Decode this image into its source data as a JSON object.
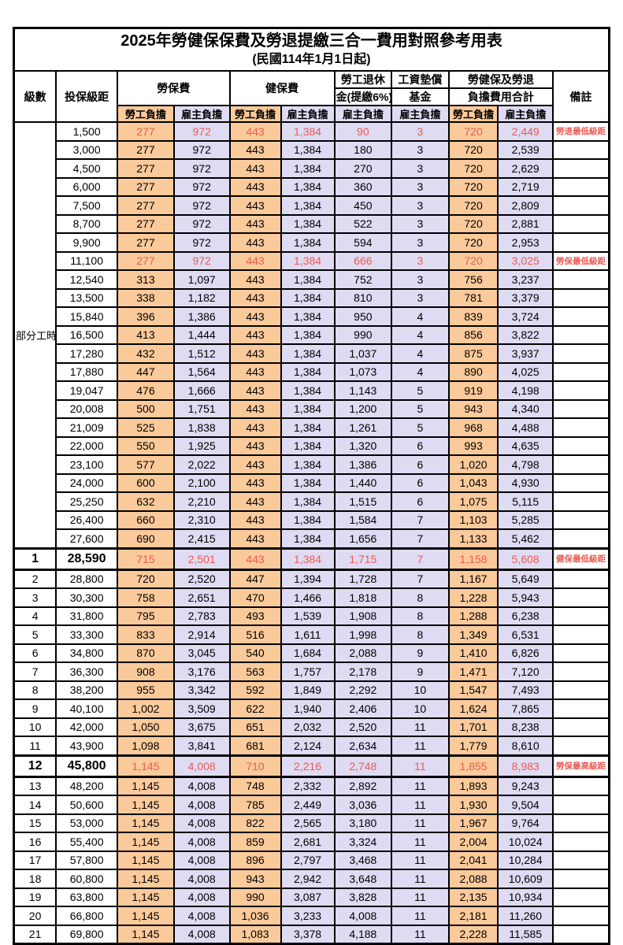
{
  "title": "2025年勞健保保費及勞退提繳三合一費用對照參考用表",
  "subtitle": "(民國114年1月1日起)",
  "colors": {
    "employee_column_bg": "#FBCA9B",
    "employer_column_bg": "#DEDBF3",
    "highlight_text": "#EE5A52",
    "border": "#000000"
  },
  "header": {
    "grade": "級數",
    "salary_bracket": "投保級距",
    "labor_insurance": "勞保費",
    "health_insurance": "健保費",
    "pension_line1": "勞工退休",
    "pension_line2": "金(提繳6%)",
    "wage_fund_line1": "工資墊償",
    "wage_fund_line2": "基金",
    "total_line1": "勞健保及勞退",
    "total_line2": "負擔費用合計",
    "remark": "備註",
    "employee_share": "勞工負擔",
    "employer_share": "雇主負擔"
  },
  "part_time_label": "部分工時",
  "rows": [
    {
      "grade": "",
      "salary": "1,500",
      "v": [
        "277",
        "972",
        "443",
        "1,384",
        "90",
        "3",
        "720",
        "2,449"
      ],
      "remark": "勞退最低級距",
      "red": true
    },
    {
      "grade": "",
      "salary": "3,000",
      "v": [
        "277",
        "972",
        "443",
        "1,384",
        "180",
        "3",
        "720",
        "2,539"
      ],
      "remark": ""
    },
    {
      "grade": "",
      "salary": "4,500",
      "v": [
        "277",
        "972",
        "443",
        "1,384",
        "270",
        "3",
        "720",
        "2,629"
      ],
      "remark": ""
    },
    {
      "grade": "",
      "salary": "6,000",
      "v": [
        "277",
        "972",
        "443",
        "1,384",
        "360",
        "3",
        "720",
        "2,719"
      ],
      "remark": ""
    },
    {
      "grade": "",
      "salary": "7,500",
      "v": [
        "277",
        "972",
        "443",
        "1,384",
        "450",
        "3",
        "720",
        "2,809"
      ],
      "remark": ""
    },
    {
      "grade": "",
      "salary": "8,700",
      "v": [
        "277",
        "972",
        "443",
        "1,384",
        "522",
        "3",
        "720",
        "2,881"
      ],
      "remark": ""
    },
    {
      "grade": "",
      "salary": "9,900",
      "v": [
        "277",
        "972",
        "443",
        "1,384",
        "594",
        "3",
        "720",
        "2,953"
      ],
      "remark": ""
    },
    {
      "grade": "",
      "salary": "11,100",
      "v": [
        "277",
        "972",
        "443",
        "1,384",
        "666",
        "3",
        "720",
        "3,025"
      ],
      "remark": "勞保最低級距",
      "red": true
    },
    {
      "grade": "",
      "salary": "12,540",
      "v": [
        "313",
        "1,097",
        "443",
        "1,384",
        "752",
        "3",
        "756",
        "3,237"
      ],
      "remark": ""
    },
    {
      "grade": "",
      "salary": "13,500",
      "v": [
        "338",
        "1,182",
        "443",
        "1,384",
        "810",
        "3",
        "781",
        "3,379"
      ],
      "remark": ""
    },
    {
      "grade": "",
      "salary": "15,840",
      "v": [
        "396",
        "1,386",
        "443",
        "1,384",
        "950",
        "4",
        "839",
        "3,724"
      ],
      "remark": ""
    },
    {
      "grade": "",
      "salary": "16,500",
      "v": [
        "413",
        "1,444",
        "443",
        "1,384",
        "990",
        "4",
        "856",
        "3,822"
      ],
      "remark": ""
    },
    {
      "grade": "",
      "salary": "17,280",
      "v": [
        "432",
        "1,512",
        "443",
        "1,384",
        "1,037",
        "4",
        "875",
        "3,937"
      ],
      "remark": ""
    },
    {
      "grade": "",
      "salary": "17,880",
      "v": [
        "447",
        "1,564",
        "443",
        "1,384",
        "1,073",
        "4",
        "890",
        "4,025"
      ],
      "remark": ""
    },
    {
      "grade": "",
      "salary": "19,047",
      "v": [
        "476",
        "1,666",
        "443",
        "1,384",
        "1,143",
        "5",
        "919",
        "4,198"
      ],
      "remark": ""
    },
    {
      "grade": "",
      "salary": "20,008",
      "v": [
        "500",
        "1,751",
        "443",
        "1,384",
        "1,200",
        "5",
        "943",
        "4,340"
      ],
      "remark": ""
    },
    {
      "grade": "",
      "salary": "21,009",
      "v": [
        "525",
        "1,838",
        "443",
        "1,384",
        "1,261",
        "5",
        "968",
        "4,488"
      ],
      "remark": ""
    },
    {
      "grade": "",
      "salary": "22,000",
      "v": [
        "550",
        "1,925",
        "443",
        "1,384",
        "1,320",
        "6",
        "993",
        "4,635"
      ],
      "remark": ""
    },
    {
      "grade": "",
      "salary": "23,100",
      "v": [
        "577",
        "2,022",
        "443",
        "1,384",
        "1,386",
        "6",
        "1,020",
        "4,798"
      ],
      "remark": ""
    },
    {
      "grade": "",
      "salary": "24,000",
      "v": [
        "600",
        "2,100",
        "443",
        "1,384",
        "1,440",
        "6",
        "1,043",
        "4,930"
      ],
      "remark": ""
    },
    {
      "grade": "",
      "salary": "25,250",
      "v": [
        "632",
        "2,210",
        "443",
        "1,384",
        "1,515",
        "6",
        "1,075",
        "5,115"
      ],
      "remark": ""
    },
    {
      "grade": "",
      "salary": "26,400",
      "v": [
        "660",
        "2,310",
        "443",
        "1,384",
        "1,584",
        "7",
        "1,103",
        "5,285"
      ],
      "remark": ""
    },
    {
      "grade": "",
      "salary": "27,600",
      "v": [
        "690",
        "2,415",
        "443",
        "1,384",
        "1,656",
        "7",
        "1,133",
        "5,462"
      ],
      "remark": ""
    },
    {
      "grade": "1",
      "salary": "28,590",
      "v": [
        "715",
        "2,501",
        "443",
        "1,384",
        "1,715",
        "7",
        "1,158",
        "5,608"
      ],
      "remark": "健保最低級距",
      "red": true,
      "key": true
    },
    {
      "grade": "2",
      "salary": "28,800",
      "v": [
        "720",
        "2,520",
        "447",
        "1,394",
        "1,728",
        "7",
        "1,167",
        "5,649"
      ],
      "remark": ""
    },
    {
      "grade": "3",
      "salary": "30,300",
      "v": [
        "758",
        "2,651",
        "470",
        "1,466",
        "1,818",
        "8",
        "1,228",
        "5,943"
      ],
      "remark": ""
    },
    {
      "grade": "4",
      "salary": "31,800",
      "v": [
        "795",
        "2,783",
        "493",
        "1,539",
        "1,908",
        "8",
        "1,288",
        "6,238"
      ],
      "remark": ""
    },
    {
      "grade": "5",
      "salary": "33,300",
      "v": [
        "833",
        "2,914",
        "516",
        "1,611",
        "1,998",
        "8",
        "1,349",
        "6,531"
      ],
      "remark": ""
    },
    {
      "grade": "6",
      "salary": "34,800",
      "v": [
        "870",
        "3,045",
        "540",
        "1,684",
        "2,088",
        "9",
        "1,410",
        "6,826"
      ],
      "remark": ""
    },
    {
      "grade": "7",
      "salary": "36,300",
      "v": [
        "908",
        "3,176",
        "563",
        "1,757",
        "2,178",
        "9",
        "1,471",
        "7,120"
      ],
      "remark": ""
    },
    {
      "grade": "8",
      "salary": "38,200",
      "v": [
        "955",
        "3,342",
        "592",
        "1,849",
        "2,292",
        "10",
        "1,547",
        "7,493"
      ],
      "remark": ""
    },
    {
      "grade": "9",
      "salary": "40,100",
      "v": [
        "1,002",
        "3,509",
        "622",
        "1,940",
        "2,406",
        "10",
        "1,624",
        "7,865"
      ],
      "remark": ""
    },
    {
      "grade": "10",
      "salary": "42,000",
      "v": [
        "1,050",
        "3,675",
        "651",
        "2,032",
        "2,520",
        "11",
        "1,701",
        "8,238"
      ],
      "remark": ""
    },
    {
      "grade": "11",
      "salary": "43,900",
      "v": [
        "1,098",
        "3,841",
        "681",
        "2,124",
        "2,634",
        "11",
        "1,779",
        "8,610"
      ],
      "remark": ""
    },
    {
      "grade": "12",
      "salary": "45,800",
      "v": [
        "1,145",
        "4,008",
        "710",
        "2,216",
        "2,748",
        "11",
        "1,855",
        "8,983"
      ],
      "remark": "勞保最高級距",
      "red": true,
      "key": true
    },
    {
      "grade": "13",
      "salary": "48,200",
      "v": [
        "1,145",
        "4,008",
        "748",
        "2,332",
        "2,892",
        "11",
        "1,893",
        "9,243"
      ],
      "remark": ""
    },
    {
      "grade": "14",
      "salary": "50,600",
      "v": [
        "1,145",
        "4,008",
        "785",
        "2,449",
        "3,036",
        "11",
        "1,930",
        "9,504"
      ],
      "remark": ""
    },
    {
      "grade": "15",
      "salary": "53,000",
      "v": [
        "1,145",
        "4,008",
        "822",
        "2,565",
        "3,180",
        "11",
        "1,967",
        "9,764"
      ],
      "remark": ""
    },
    {
      "grade": "16",
      "salary": "55,400",
      "v": [
        "1,145",
        "4,008",
        "859",
        "2,681",
        "3,324",
        "11",
        "2,004",
        "10,024"
      ],
      "remark": ""
    },
    {
      "grade": "17",
      "salary": "57,800",
      "v": [
        "1,145",
        "4,008",
        "896",
        "2,797",
        "3,468",
        "11",
        "2,041",
        "10,284"
      ],
      "remark": ""
    },
    {
      "grade": "18",
      "salary": "60,800",
      "v": [
        "1,145",
        "4,008",
        "943",
        "2,942",
        "3,648",
        "11",
        "2,088",
        "10,609"
      ],
      "remark": ""
    },
    {
      "grade": "19",
      "salary": "63,800",
      "v": [
        "1,145",
        "4,008",
        "990",
        "3,087",
        "3,828",
        "11",
        "2,135",
        "10,934"
      ],
      "remark": ""
    },
    {
      "grade": "20",
      "salary": "66,800",
      "v": [
        "1,145",
        "4,008",
        "1,036",
        "3,233",
        "4,008",
        "11",
        "2,181",
        "11,260"
      ],
      "remark": ""
    },
    {
      "grade": "21",
      "salary": "69,800",
      "v": [
        "1,145",
        "4,008",
        "1,083",
        "3,378",
        "4,188",
        "11",
        "2,228",
        "11,585"
      ],
      "remark": ""
    }
  ]
}
